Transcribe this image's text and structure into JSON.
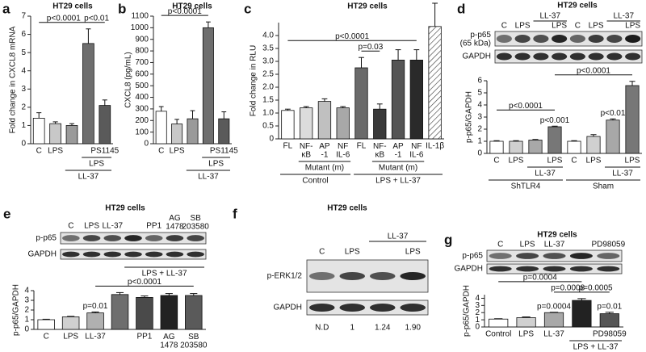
{
  "chart_data": [
    {
      "panel": "a",
      "type": "bar",
      "title": "HT29 cells",
      "ylabel": "Fold change in CXCL8 mRNA",
      "categories": [
        "C",
        "LPS",
        null,
        null,
        "PS1145"
      ],
      "values": [
        1.4,
        1.1,
        1.0,
        5.5,
        2.1
      ],
      "errors": [
        0.3,
        0.1,
        0.1,
        0.8,
        0.3
      ],
      "colors": [
        "#ffffff",
        "#c8c8c8",
        "#9a9a9a",
        "#6e6e6e",
        "#5a5a5a"
      ],
      "ylim": [
        0,
        7
      ],
      "yticks": [
        0,
        1,
        2,
        3,
        4,
        5,
        6,
        7
      ],
      "group_rows": [
        [
          {
            "label": "LPS",
            "span": [
              3,
              4
            ]
          }
        ],
        [
          {
            "label": "LL-37",
            "span": [
              2,
              4
            ]
          }
        ]
      ],
      "annotations": [
        {
          "text": "p<0.01",
          "span": [
            3,
            4
          ]
        },
        {
          "text": "p<0.0001",
          "span": [
            0,
            3
          ]
        }
      ]
    },
    {
      "panel": "b",
      "type": "bar",
      "title": "HT29 cells",
      "ylabel": "CXCL8 (pg/mL)",
      "categories": [
        "C",
        "LPS",
        null,
        null,
        "PS1145"
      ],
      "values": [
        280,
        170,
        215,
        1000,
        215
      ],
      "errors": [
        40,
        40,
        70,
        50,
        60
      ],
      "colors": [
        "#ffffff",
        "#c8c8c8",
        "#9a9a9a",
        "#6e6e6e",
        "#5a5a5a"
      ],
      "ylim": [
        0,
        1100
      ],
      "yticks": [
        0,
        100,
        200,
        300,
        400,
        500,
        600,
        700,
        800,
        900,
        1000,
        1100
      ],
      "group_rows": [
        [
          {
            "label": "LPS",
            "span": [
              3,
              4
            ]
          }
        ],
        [
          {
            "label": "LL-37",
            "span": [
              2,
              4
            ]
          }
        ]
      ],
      "annotations": [
        {
          "text": "p<0.0001",
          "span": [
            0,
            3
          ]
        }
      ]
    },
    {
      "panel": "c",
      "type": "bar",
      "title": "HT29 cells",
      "ylabel": "Fold change in RLU",
      "categories": [
        "FL",
        "NF-\nκB",
        "AP\n-1",
        "NF\nIL-6",
        "FL",
        "NF-\nκB",
        "AP\n-1",
        "NF\nIL-6",
        "IL-1β"
      ],
      "values": [
        1.1,
        1.2,
        1.45,
        1.2,
        2.75,
        1.15,
        3.05,
        3.05,
        4.35
      ],
      "errors": [
        0.05,
        0.05,
        0.1,
        0.05,
        0.4,
        0.2,
        0.4,
        0.4,
        0.9
      ],
      "colors": [
        "#ffffff",
        "#dcdcdc",
        "#c0c0c0",
        "#a8a8a8",
        "#6a6a6a",
        "#3a3a3a",
        "#555555",
        "#2a2a2a",
        "#ffffff"
      ],
      "hatched": [
        false,
        false,
        false,
        false,
        false,
        false,
        false,
        false,
        true
      ],
      "ylim": [
        0,
        4.5
      ],
      "yticks": [
        0,
        0.5,
        {
          "value": 1,
          "label": "1.0"
        },
        1.5,
        {
          "value": 2,
          "label": "2.0"
        },
        2.5,
        {
          "value": 3,
          "label": "3.0"
        },
        3.5,
        {
          "value": 4,
          "label": "4.0"
        }
      ],
      "group_rows": [
        [
          {
            "label": "Mutant (m)",
            "span": [
              1,
              3
            ]
          },
          {
            "label": "Mutant (m)",
            "span": [
              5,
              7
            ]
          }
        ],
        [
          {
            "label": "Control",
            "span": [
              0,
              3
            ]
          },
          {
            "label": "LPS + LL-37",
            "span": [
              4,
              8
            ]
          }
        ]
      ],
      "annotations": [
        {
          "text": "p=0.03",
          "span": [
            4,
            5
          ]
        },
        {
          "text": "p<0.0001",
          "span": [
            0,
            7
          ]
        }
      ]
    },
    {
      "panel": "d",
      "type": "bar",
      "title": "HT29 cells",
      "ylabel": "p-p65/GAPDH",
      "categories": [
        "C",
        "LPS",
        null,
        "LPS",
        "C",
        "LPS",
        null,
        "LPS"
      ],
      "values": [
        1.0,
        1.0,
        1.1,
        2.2,
        1.0,
        1.4,
        2.75,
        5.6
      ],
      "errors": [
        0.05,
        0.05,
        0.05,
        0.05,
        0.05,
        0.15,
        0.1,
        0.35
      ],
      "colors": [
        "#ffffff",
        "#d0d0d0",
        "#a8a8a8",
        "#777777",
        "#ffffff",
        "#d0d0d0",
        "#a8a8a8",
        "#777777"
      ],
      "ylim": [
        0,
        6
      ],
      "yticks": [
        0,
        1,
        2,
        3,
        4,
        5,
        6
      ],
      "group_rows": [
        [
          {
            "label": "LL-37",
            "span": [
              2,
              3
            ]
          },
          {
            "label": "LL-37",
            "span": [
              6,
              7
            ]
          }
        ],
        [
          {
            "label": "ShTLR4",
            "span": [
              0,
              3
            ]
          },
          {
            "label": "Sham",
            "span": [
              4,
              7
            ]
          }
        ]
      ],
      "annotations": [
        {
          "text": "p<0.001",
          "span": [
            3,
            3
          ]
        },
        {
          "text": "p<0.01",
          "span": [
            6,
            6
          ]
        },
        {
          "text": "p<0.0001",
          "span": [
            0,
            3
          ]
        },
        {
          "text": "p<0.0001",
          "span": [
            3,
            7
          ]
        }
      ]
    },
    {
      "panel": "e",
      "type": "bar",
      "title": "HT29 cells",
      "ylabel": "p-p65/GAPDH",
      "categories": [
        "C",
        "LPS",
        "LL-37",
        null,
        "PP1",
        "AG\n1478",
        "SB\n203580"
      ],
      "values": [
        1.0,
        1.3,
        1.7,
        3.6,
        3.3,
        3.5,
        3.5
      ],
      "errors": [
        0.05,
        0.05,
        0.1,
        0.2,
        0.15,
        0.2,
        0.2
      ],
      "colors": [
        "#ffffff",
        "#d0d0d0",
        "#b0b0b0",
        "#6e6e6e",
        "#4a4a4a",
        "#222222",
        "#5a5a5a"
      ],
      "ylim": [
        0,
        4
      ],
      "yticks": [
        0,
        1,
        2,
        3,
        4
      ],
      "group_rows": [],
      "annotations": [
        {
          "text": "p=0.01",
          "span": [
            2,
            2
          ]
        },
        {
          "text": "p<0.0001",
          "span": [
            2,
            6
          ]
        }
      ]
    },
    {
      "panel": "g",
      "type": "bar",
      "title": "HT29 cells",
      "ylabel": "p-p65/GAPDH",
      "categories": [
        "Control",
        "LPS",
        "LL-37",
        null,
        "PD98059"
      ],
      "values": [
        1.1,
        1.3,
        2.0,
        3.7,
        1.85
      ],
      "errors": [
        0.05,
        0.1,
        0.05,
        0.25,
        0.2
      ],
      "colors": [
        "#ffffff",
        "#d0d0d0",
        "#a8a8a8",
        "#222222",
        "#555555"
      ],
      "ylim": [
        0,
        4.5
      ],
      "yticks": [
        0,
        1,
        2,
        3,
        4
      ],
      "group_rows": [
        [
          {
            "label": "LPS + LL-37",
            "span": [
              3,
              4
            ]
          }
        ]
      ],
      "annotations": [
        {
          "text": "p=0.0004",
          "span": [
            2,
            2
          ]
        },
        {
          "text": "p=0.01",
          "span": [
            4,
            4
          ]
        },
        {
          "text": "p=0.0008",
          "span": [
            2,
            3
          ]
        },
        {
          "text": "p=0.0004",
          "span": [
            0,
            3
          ]
        },
        {
          "text": "p=0.0005",
          "span": [
            3,
            4
          ]
        }
      ]
    }
  ],
  "blots": [
    {
      "lanes": [
        "C",
        "LPS",
        null,
        "LPS",
        "C",
        "LPS",
        null,
        "LPS"
      ],
      "lane_groups": [
        {
          "label": "LL-37",
          "span": [
            2,
            3
          ]
        },
        {
          "label": "LL-37",
          "span": [
            6,
            7
          ]
        }
      ],
      "rows": [
        "p-p65\n(65 kDa)",
        "GAPDH"
      ]
    },
    {
      "lanes": [
        "C",
        "LPS",
        "LL-37",
        null,
        "PP1",
        "AG\n1478",
        "SB\n203580"
      ],
      "lane_groups_below": [
        {
          "label": "LPS + LL-37",
          "span": [
            3,
            6
          ]
        }
      ],
      "rows": [
        "p-p65",
        "GAPDH"
      ]
    },
    {
      "panel": "f",
      "title": "HT29 cells",
      "lanes": [
        "C",
        "LPS",
        null,
        "LPS"
      ],
      "lane_groups": [
        {
          "label": "LL-37",
          "span": [
            2,
            3
          ]
        }
      ],
      "rows": [
        "p-ERK1/2",
        "GAPDH"
      ],
      "quant": [
        "N.D",
        "1",
        "1.24",
        "1.90"
      ]
    },
    {
      "lanes": [
        "C",
        "LPS",
        "LL-37",
        null,
        "PD98059"
      ],
      "rows": [
        "p-p65",
        "GAPDH"
      ]
    }
  ]
}
